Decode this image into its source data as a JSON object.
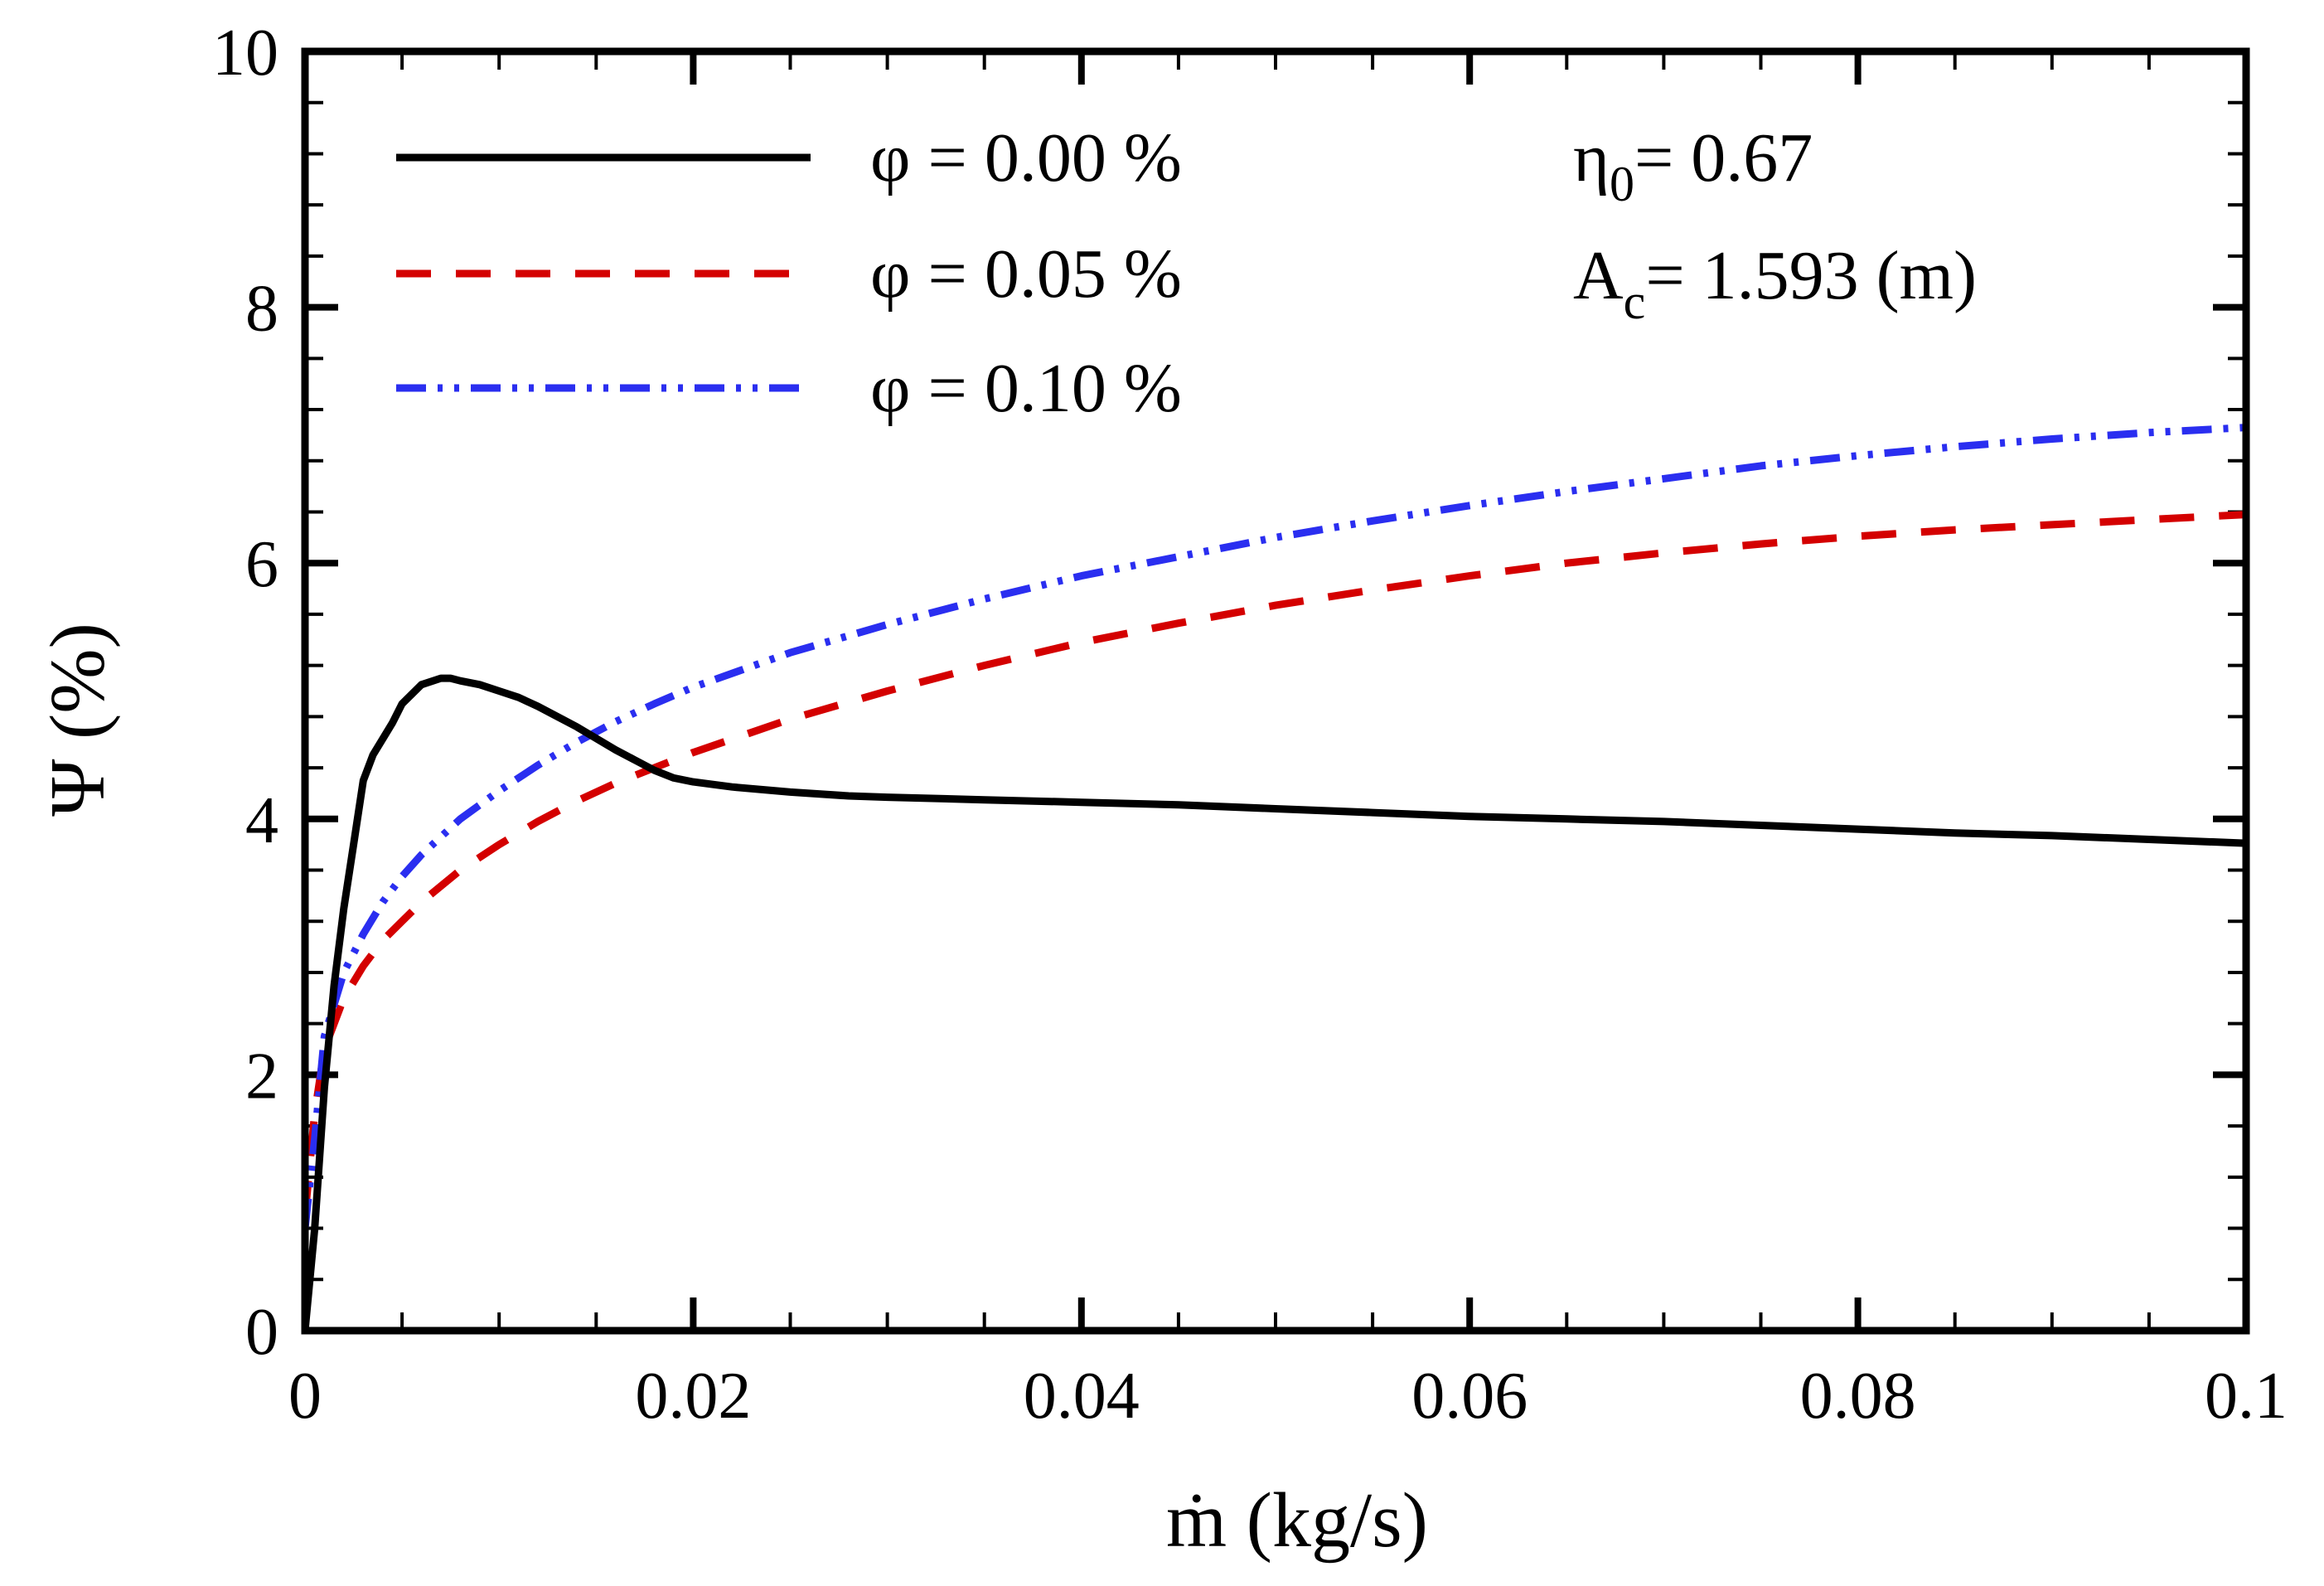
{
  "chart_data": {
    "type": "line",
    "title": "",
    "xlabel": "ṁ (kg/s)",
    "ylabel": "Ψ (%)",
    "xlim": [
      0,
      0.1
    ],
    "ylim": [
      0,
      10
    ],
    "xticks": [
      0,
      0.02,
      0.04,
      0.06,
      0.08,
      0.1
    ],
    "yticks": [
      0,
      2,
      4,
      6,
      8,
      10
    ],
    "xtick_labels": [
      "0",
      "0.02",
      "0.04",
      "0.06",
      "0.08",
      "0.1"
    ],
    "ytick_labels": [
      "0",
      "2",
      "4",
      "6",
      "8",
      "10"
    ],
    "x_minor_step": 0.005,
    "y_minor_step": 0.4,
    "grid": false,
    "legend_position": "top-left",
    "annotations": {
      "eta_symbol": "η",
      "eta_sub": "0",
      "eta_value": "= 0.67",
      "ac_symbol": "A",
      "ac_sub": "c",
      "ac_value": "= 1.593 (m)"
    },
    "series": [
      {
        "name": "φ = 0.00 %",
        "color": "#000000",
        "style": "solid",
        "x": [
          0,
          0.0005,
          0.001,
          0.0015,
          0.002,
          0.0025,
          0.003,
          0.0035,
          0.0045,
          0.005,
          0.006,
          0.007,
          0.0075,
          0.008,
          0.009,
          0.01,
          0.011,
          0.012,
          0.013,
          0.014,
          0.015,
          0.016,
          0.017,
          0.018,
          0.019,
          0.02,
          0.022,
          0.025,
          0.028,
          0.03,
          0.035,
          0.04,
          0.045,
          0.05,
          0.055,
          0.06,
          0.065,
          0.07,
          0.075,
          0.08,
          0.085,
          0.09,
          0.095,
          0.1
        ],
        "y": [
          0,
          0.8,
          1.9,
          2.7,
          3.3,
          3.8,
          4.3,
          4.5,
          4.75,
          4.9,
          5.05,
          5.1,
          5.1,
          5.08,
          5.05,
          5.0,
          4.95,
          4.88,
          4.8,
          4.72,
          4.63,
          4.54,
          4.46,
          4.38,
          4.32,
          4.29,
          4.25,
          4.21,
          4.18,
          4.17,
          4.15,
          4.13,
          4.11,
          4.08,
          4.05,
          4.02,
          4.0,
          3.98,
          3.95,
          3.92,
          3.89,
          3.87,
          3.84,
          3.81
        ]
      },
      {
        "name": "φ = 0.05 %",
        "color": "#d40000",
        "style": "dashed",
        "x": [
          0,
          0.0005,
          0.001,
          0.002,
          0.003,
          0.004,
          0.005,
          0.006,
          0.008,
          0.01,
          0.012,
          0.014,
          0.016,
          0.018,
          0.02,
          0.025,
          0.03,
          0.035,
          0.04,
          0.045,
          0.05,
          0.055,
          0.06,
          0.065,
          0.07,
          0.075,
          0.08,
          0.085,
          0.09,
          0.095,
          0.1
        ],
        "y": [
          0.9,
          1.7,
          2.2,
          2.6,
          2.85,
          3.05,
          3.2,
          3.35,
          3.6,
          3.8,
          3.98,
          4.14,
          4.28,
          4.4,
          4.52,
          4.78,
          5.0,
          5.2,
          5.38,
          5.53,
          5.67,
          5.79,
          5.9,
          6.0,
          6.08,
          6.15,
          6.21,
          6.26,
          6.3,
          6.34,
          6.38
        ]
      },
      {
        "name": "φ = 0.10 %",
        "color": "#2a2ef0",
        "style": "dash-dot-dot",
        "x": [
          0,
          0.0005,
          0.001,
          0.002,
          0.003,
          0.004,
          0.005,
          0.006,
          0.008,
          0.01,
          0.012,
          0.014,
          0.016,
          0.018,
          0.02,
          0.025,
          0.03,
          0.035,
          0.04,
          0.045,
          0.05,
          0.055,
          0.06,
          0.065,
          0.07,
          0.075,
          0.08,
          0.085,
          0.09,
          0.095,
          0.1
        ],
        "y": [
          0.8,
          1.5,
          2.3,
          2.8,
          3.1,
          3.35,
          3.55,
          3.72,
          4.0,
          4.22,
          4.42,
          4.6,
          4.76,
          4.9,
          5.03,
          5.3,
          5.52,
          5.72,
          5.9,
          6.05,
          6.2,
          6.33,
          6.45,
          6.56,
          6.66,
          6.76,
          6.84,
          6.91,
          6.97,
          7.02,
          7.06
        ]
      }
    ]
  }
}
